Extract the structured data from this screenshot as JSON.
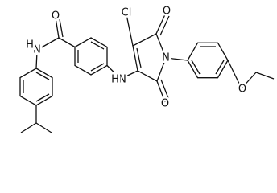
{
  "atoms": [
    {
      "label": "O"
    },
    {
      "label": "N"
    },
    {
      "label": "H"
    },
    {
      "label": "Cl"
    },
    {
      "label": "O"
    },
    {
      "label": "N"
    },
    {
      "label": "H"
    },
    {
      "label": "N"
    },
    {
      "label": "O"
    },
    {
      "label": "O"
    }
  ]
}
